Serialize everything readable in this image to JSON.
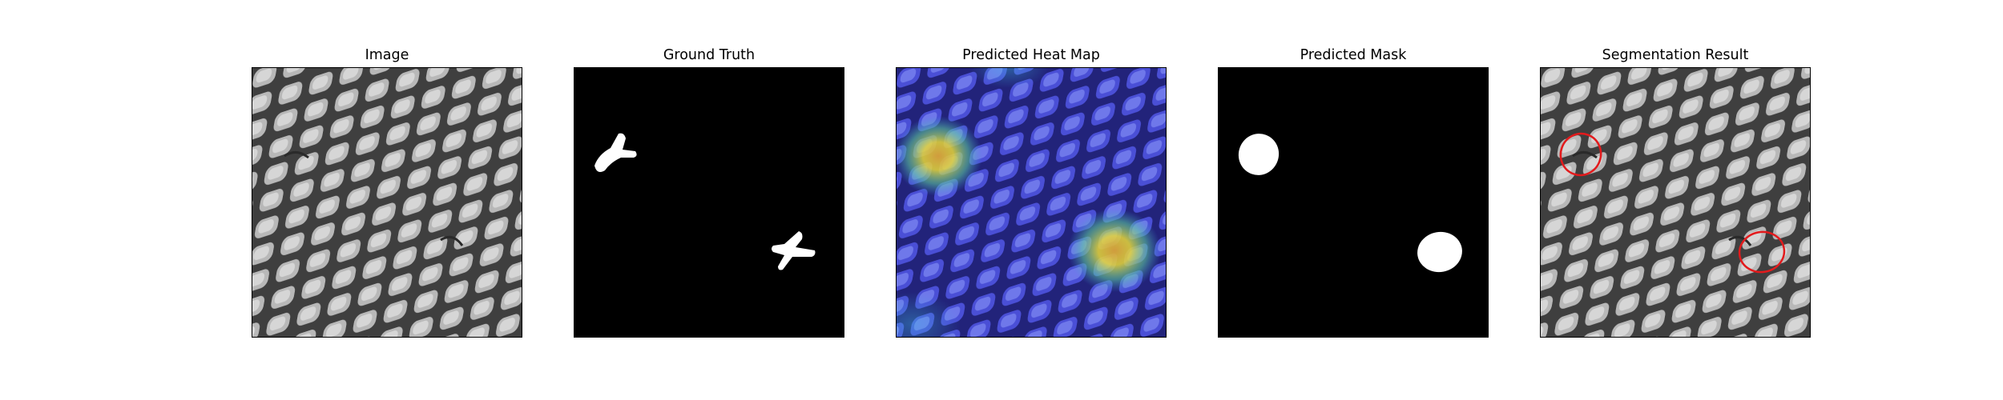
{
  "figure": {
    "panels": [
      {
        "title": "Image"
      },
      {
        "title": "Ground Truth"
      },
      {
        "title": "Predicted Heat Map"
      },
      {
        "title": "Predicted Mask"
      },
      {
        "title": "Segmentation Result"
      }
    ]
  },
  "colors": {
    "background": "#ffffff",
    "mesh_light": "#c9c9c9",
    "mesh_dark": "#3f3f3f",
    "mask_fill": "#ffffff",
    "mask_background": "#000000",
    "heat_low": "#3a3ac8",
    "heat_high": "#f0d020",
    "contour": "#e31a1c"
  }
}
